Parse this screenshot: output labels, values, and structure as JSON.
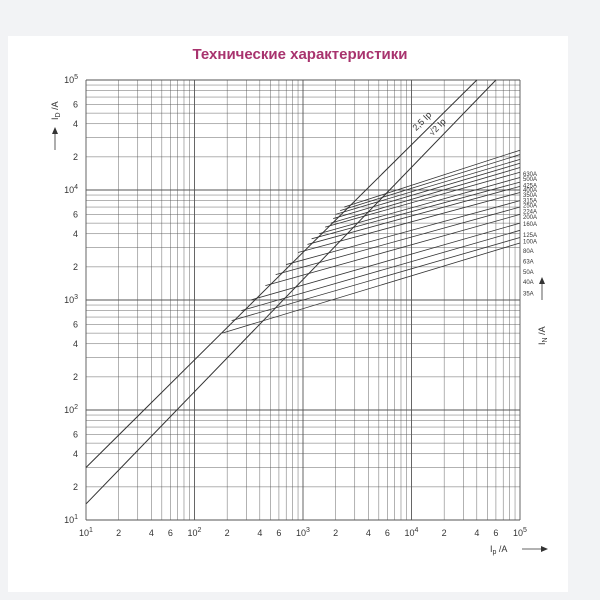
{
  "page": {
    "title": "Технические характеристики"
  },
  "chart_data": {
    "type": "line",
    "title": "Технические характеристики",
    "xlabel": "Ip /A",
    "ylabel": "ID /A",
    "right_label": "IN /A",
    "x_scale": "log",
    "y_scale": "log",
    "xlim": [
      10,
      100000
    ],
    "ylim": [
      10,
      100000
    ],
    "grid": true,
    "x_ticks": [
      {
        "label": "10",
        "sup": "1"
      },
      {
        "label": "2",
        "sup": ""
      },
      {
        "label": "4",
        "sup": ""
      },
      {
        "label": "6",
        "sup": ""
      },
      {
        "label": "10",
        "sup": "2"
      },
      {
        "label": "2",
        "sup": ""
      },
      {
        "label": "4",
        "sup": ""
      },
      {
        "label": "6",
        "sup": ""
      },
      {
        "label": "10",
        "sup": "3"
      },
      {
        "label": "2",
        "sup": ""
      },
      {
        "label": "4",
        "sup": ""
      },
      {
        "label": "6",
        "sup": ""
      },
      {
        "label": "10",
        "sup": "4"
      },
      {
        "label": "2",
        "sup": ""
      },
      {
        "label": "4",
        "sup": ""
      },
      {
        "label": "6",
        "sup": ""
      },
      {
        "label": "10",
        "sup": "5"
      }
    ],
    "x_tick_values": [
      10,
      20,
      40,
      60,
      100,
      200,
      400,
      600,
      1000,
      2000,
      4000,
      6000,
      10000,
      20000,
      40000,
      60000,
      100000
    ],
    "y_ticks": [
      {
        "label": "10",
        "sup": "1"
      },
      {
        "label": "2",
        "sup": ""
      },
      {
        "label": "4",
        "sup": ""
      },
      {
        "label": "6",
        "sup": ""
      },
      {
        "label": "10",
        "sup": "2"
      },
      {
        "label": "2",
        "sup": ""
      },
      {
        "label": "4",
        "sup": ""
      },
      {
        "label": "6",
        "sup": ""
      },
      {
        "label": "10",
        "sup": "3"
      },
      {
        "label": "2",
        "sup": ""
      },
      {
        "label": "4",
        "sup": ""
      },
      {
        "label": "6",
        "sup": ""
      },
      {
        "label": "10",
        "sup": "4"
      },
      {
        "label": "2",
        "sup": ""
      },
      {
        "label": "4",
        "sup": ""
      },
      {
        "label": "6",
        "sup": ""
      },
      {
        "label": "10",
        "sup": "5"
      }
    ],
    "y_tick_values": [
      10,
      20,
      40,
      60,
      100,
      200,
      400,
      600,
      1000,
      2000,
      4000,
      6000,
      10000,
      20000,
      40000,
      60000,
      100000
    ],
    "limit_lines": [
      {
        "name": "2,5 Ip",
        "points": [
          [
            10,
            30
          ],
          [
            40000,
            100000
          ]
        ]
      },
      {
        "name": "√2 Ip",
        "points": [
          [
            10,
            14
          ],
          [
            60000,
            100000
          ]
        ]
      }
    ],
    "series": [
      {
        "name": "630A",
        "start": [
          2400,
          7000
        ],
        "end": [
          100000,
          23000
        ]
      },
      {
        "name": "500A",
        "start": [
          2200,
          6500
        ],
        "end": [
          100000,
          21000
        ]
      },
      {
        "name": "425A",
        "start": [
          2000,
          6000
        ],
        "end": [
          100000,
          19000
        ]
      },
      {
        "name": "400A",
        "start": [
          1900,
          5500
        ],
        "end": [
          100000,
          17500
        ]
      },
      {
        "name": "350A",
        "start": [
          1800,
          5000
        ],
        "end": [
          100000,
          16000
        ]
      },
      {
        "name": "315A",
        "start": [
          1600,
          4600
        ],
        "end": [
          100000,
          14500
        ]
      },
      {
        "name": "250A",
        "start": [
          1400,
          4000
        ],
        "end": [
          100000,
          13000
        ]
      },
      {
        "name": "224A",
        "start": [
          1200,
          3600
        ],
        "end": [
          100000,
          11800
        ]
      },
      {
        "name": "200A",
        "start": [
          1100,
          3200
        ],
        "end": [
          100000,
          10800
        ]
      },
      {
        "name": "160A",
        "start": [
          900,
          2700
        ],
        "end": [
          100000,
          9500
        ]
      },
      {
        "name": "125A",
        "start": [
          700,
          2100
        ],
        "end": [
          100000,
          8000
        ]
      },
      {
        "name": "100A",
        "start": [
          560,
          1700
        ],
        "end": [
          100000,
          7000
        ]
      },
      {
        "name": "80A",
        "start": [
          450,
          1350
        ],
        "end": [
          100000,
          6000
        ]
      },
      {
        "name": "63A",
        "start": [
          330,
          1000
        ],
        "end": [
          100000,
          5000
        ]
      },
      {
        "name": "50A",
        "start": [
          270,
          800
        ],
        "end": [
          100000,
          4300
        ]
      },
      {
        "name": "40A",
        "start": [
          220,
          650
        ],
        "end": [
          100000,
          3700
        ]
      },
      {
        "name": "35A",
        "start": [
          180,
          500
        ],
        "end": [
          100000,
          3300
        ]
      }
    ],
    "series_labels": {
      "630A": 14000,
      "500A": 12600,
      "425A": 11000,
      "400A": 10000,
      "350A": 9000,
      "315A": 8000,
      "250A": 7200,
      "224A": 6400,
      "200A": 5700,
      "160A": 4900,
      "125A": 3900,
      "100A": 3400,
      "80A": 2800,
      "63A": 2250,
      "50A": 1800,
      "40A": 1450,
      "35A": 1150
    },
    "colors": {
      "grid": "#555555",
      "line": "#333333",
      "title": "#a8336e"
    }
  }
}
